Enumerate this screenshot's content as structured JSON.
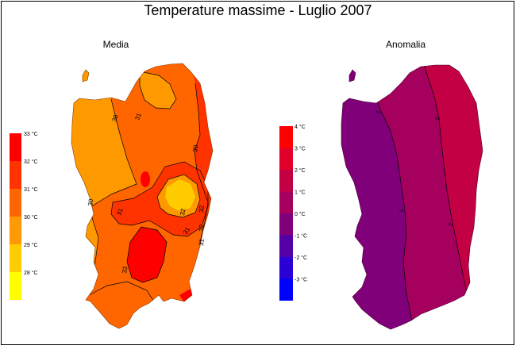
{
  "title": "Temperature massime - Luglio 2007",
  "panels": [
    {
      "label": "Media",
      "legend": [
        {
          "label": "33 °C",
          "color": "#ff0000"
        },
        {
          "label": "32 °C",
          "color": "#ff3300"
        },
        {
          "label": "31 °C",
          "color": "#ff6600"
        },
        {
          "label": "30 °C",
          "color": "#ff9900"
        },
        {
          "label": "29 °C",
          "color": "#ffcc00"
        },
        {
          "label": "28 °C",
          "color": "#ffff00"
        }
      ],
      "contour_labels": [
        "30",
        "31",
        "30",
        "30",
        "31",
        "31",
        "31",
        "32",
        "32",
        "32",
        "33"
      ]
    },
    {
      "label": "Anomalia",
      "legend": [
        {
          "label": "4 °C",
          "color": "#ff0000"
        },
        {
          "label": "3 °C",
          "color": "#e0002a"
        },
        {
          "label": "2 °C",
          "color": "#c40045"
        },
        {
          "label": "1 °C",
          "color": "#a6005f"
        },
        {
          "label": "0 °C",
          "color": "#80007a"
        },
        {
          "label": "-1 °C",
          "color": "#5500a6"
        },
        {
          "label": "-2 °C",
          "color": "#2a00d4"
        },
        {
          "label": "-3 °C",
          "color": "#0000ff"
        }
      ],
      "contour_labels": [
        "1",
        "2",
        "1",
        "2"
      ]
    }
  ]
}
